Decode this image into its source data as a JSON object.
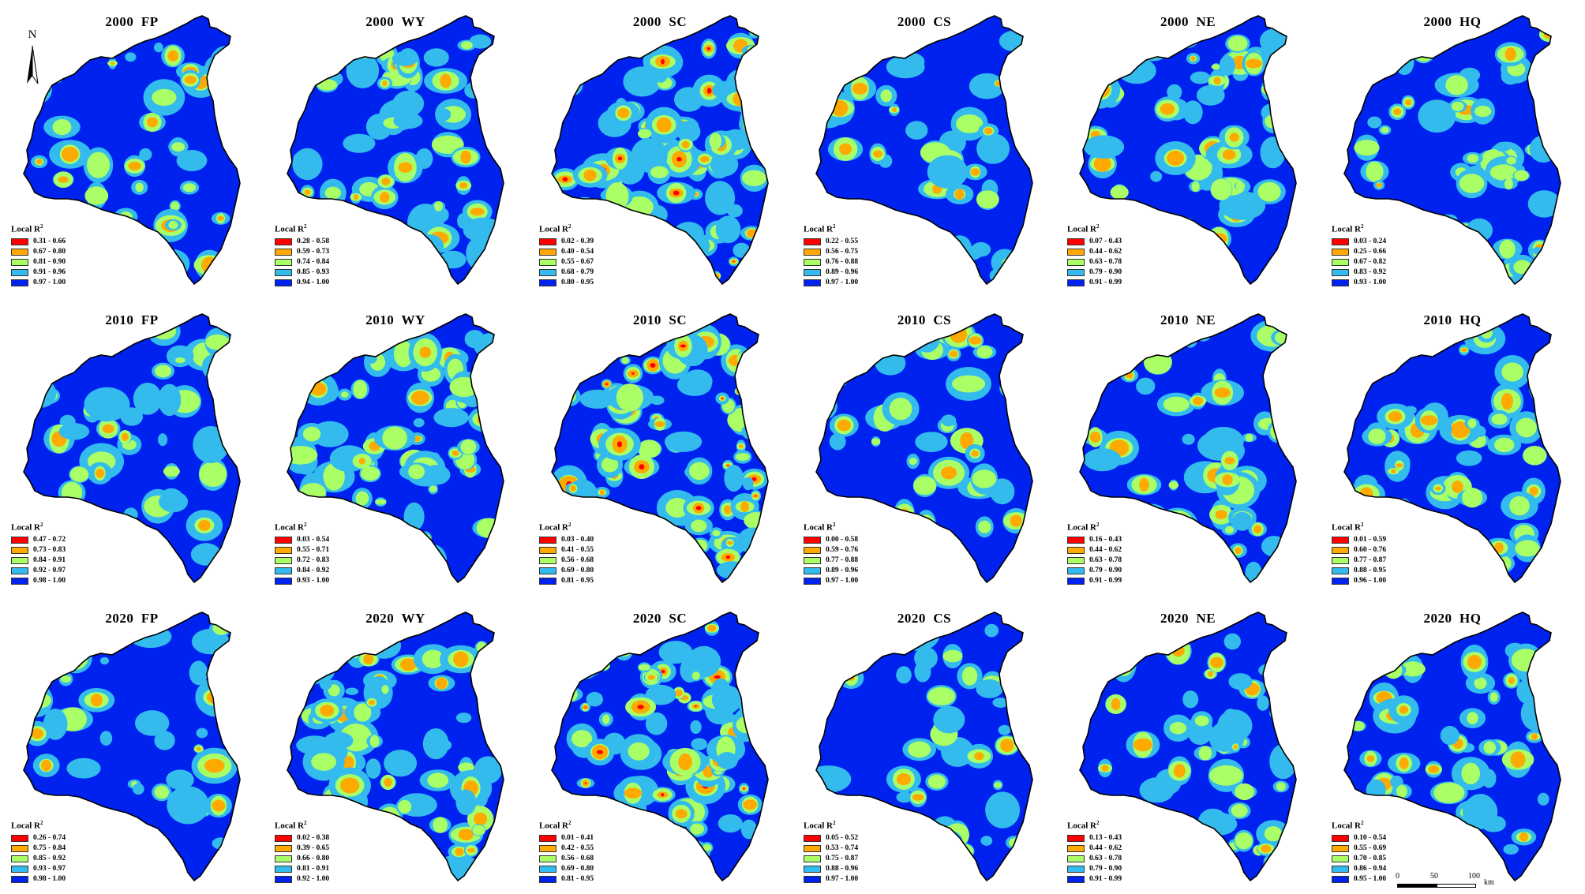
{
  "legend_title": "Local R",
  "legend_title_sup": "2",
  "class_colors": [
    "#ff0000",
    "#ffaa00",
    "#aaff66",
    "#33bbee",
    "#0022ee"
  ],
  "north_arrow": {
    "label": "N"
  },
  "scale_bar": {
    "ticks": [
      "0",
      "50",
      "100"
    ],
    "unit": "km"
  },
  "panels": [
    {
      "title": "2000  FP",
      "legend": [
        "0.31 - 0.66",
        "0.67 - 0.80",
        "0.81 - 0.90",
        "0.91 - 0.96",
        "0.97 - 1.00"
      ]
    },
    {
      "title": "2000  WY",
      "legend": [
        "0.28 - 0.58",
        "0.59 - 0.73",
        "0.74 - 0.84",
        "0.85 - 0.93",
        "0.94 - 1.00"
      ]
    },
    {
      "title": "2000  SC",
      "legend": [
        "0.02 - 0.39",
        "0.40 - 0.54",
        "0.55 - 0.67",
        "0.68 - 0.79",
        "0.80 - 0.95"
      ]
    },
    {
      "title": "2000  CS",
      "legend": [
        "0.22 - 0.55",
        "0.56 - 0.75",
        "0.76 - 0.88",
        "0.89 - 0.96",
        "0.97 - 1.00"
      ]
    },
    {
      "title": "2000  NE",
      "legend": [
        "0.07 - 0.43",
        "0.44 - 0.62",
        "0.63 - 0.78",
        "0.79 - 0.90",
        "0.91 - 0.99"
      ]
    },
    {
      "title": "2000  HQ",
      "legend": [
        "0.03 - 0.24",
        "0.25 - 0.66",
        "0.67 - 0.82",
        "0.83 - 0.92",
        "0.93 - 1.00"
      ]
    },
    {
      "title": "2010  FP",
      "legend": [
        "0.47 - 0.72",
        "0.73 - 0.83",
        "0.84 - 0.91",
        "0.92 - 0.97",
        "0.98 - 1.00"
      ]
    },
    {
      "title": "2010  WY",
      "legend": [
        "0.03 - 0.54",
        "0.55 - 0.71",
        "0.72 - 0.83",
        "0.84 - 0.92",
        "0.93 - 1.00"
      ]
    },
    {
      "title": "2010  SC",
      "legend": [
        "0.03 - 0.40",
        "0.41 - 0.55",
        "0.56 - 0.68",
        "0.69 - 0.80",
        "0.81 - 0.95"
      ]
    },
    {
      "title": "2010  CS",
      "legend": [
        "0.00 - 0.58",
        "0.59 - 0.76",
        "0.77 - 0.88",
        "0.89 - 0.96",
        "0.97 - 1.00"
      ]
    },
    {
      "title": "2010  NE",
      "legend": [
        "0.16 - 0.43",
        "0.44 - 0.62",
        "0.63 - 0.78",
        "0.79 - 0.90",
        "0.91 - 0.99"
      ]
    },
    {
      "title": "2010  HQ",
      "legend": [
        "0.01 - 0.59",
        "0.60 - 0.76",
        "0.77 - 0.87",
        "0.88 - 0.95",
        "0.96 - 1.00"
      ]
    },
    {
      "title": "2020  FP",
      "legend": [
        "0.26 - 0.74",
        "0.75 - 0.84",
        "0.85 - 0.92",
        "0.93 - 0.97",
        "0.98 - 1.00"
      ]
    },
    {
      "title": "2020  WY",
      "legend": [
        "0.02 - 0.38",
        "0.39 - 0.65",
        "0.66 - 0.80",
        "0.81 - 0.91",
        "0.92 - 1.00"
      ]
    },
    {
      "title": "2020  SC",
      "legend": [
        "0.01 - 0.41",
        "0.42 - 0.55",
        "0.56 - 0.68",
        "0.69 - 0.80",
        "0.81 - 0.95"
      ]
    },
    {
      "title": "2020  CS",
      "legend": [
        "0.05 - 0.52",
        "0.53 - 0.74",
        "0.75 - 0.87",
        "0.88 - 0.96",
        "0.97 - 1.00"
      ]
    },
    {
      "title": "2020  NE",
      "legend": [
        "0.13 - 0.43",
        "0.44 - 0.62",
        "0.63 - 0.78",
        "0.79 - 0.90",
        "0.91 - 0.99"
      ]
    },
    {
      "title": "2020  HQ",
      "legend": [
        "0.10 - 0.54",
        "0.55 - 0.69",
        "0.70 - 0.85",
        "0.86 - 0.94",
        "0.95 - 1.00"
      ]
    }
  ]
}
